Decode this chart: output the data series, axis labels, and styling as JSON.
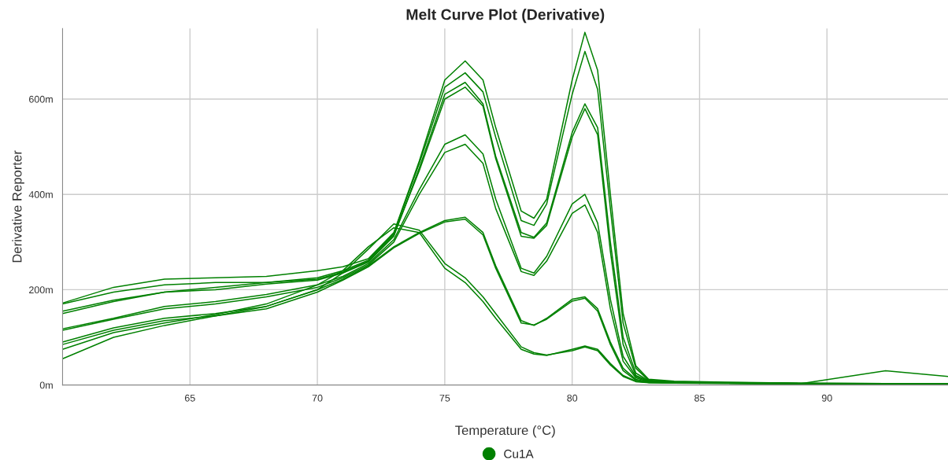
{
  "chart_data": {
    "type": "line",
    "title": "Melt Curve Plot (Derivative)",
    "xlabel": "Temperature (°C)",
    "ylabel": "Derivative Reporter",
    "x": [
      60,
      62,
      64,
      66,
      68,
      70,
      71,
      72,
      73,
      74,
      75,
      75.8,
      76.5,
      77,
      78,
      78.5,
      79,
      80,
      80.5,
      81,
      81.5,
      82,
      82.5,
      83,
      84,
      86,
      89,
      92.3,
      94.75
    ],
    "series": [
      {
        "name": "Cu1A",
        "color": "#008000",
        "values": [
          172,
          205,
          222,
          225,
          228,
          240,
          248,
          265,
          320,
          470,
          640,
          680,
          640,
          540,
          365,
          350,
          390,
          640,
          740,
          660,
          400,
          150,
          40,
          12,
          8,
          6,
          4,
          3,
          3
        ]
      },
      {
        "color": "#008000",
        "values": [
          170,
          195,
          210,
          215,
          215,
          225,
          240,
          262,
          318,
          465,
          625,
          655,
          615,
          520,
          345,
          335,
          380,
          610,
          700,
          620,
          370,
          130,
          35,
          10,
          7,
          5,
          4,
          3,
          3
        ]
      },
      {
        "color": "#008000",
        "values": [
          155,
          178,
          195,
          200,
          212,
          220,
          235,
          258,
          312,
          455,
          610,
          635,
          590,
          480,
          320,
          310,
          340,
          530,
          590,
          540,
          300,
          100,
          25,
          9,
          6,
          4,
          3,
          3,
          3
        ]
      },
      {
        "color": "#008000",
        "values": [
          150,
          175,
          195,
          205,
          215,
          222,
          237,
          260,
          315,
          450,
          600,
          625,
          585,
          475,
          312,
          308,
          335,
          520,
          580,
          525,
          280,
          85,
          20,
          8,
          6,
          4,
          3,
          3,
          3
        ]
      },
      {
        "color": "#008000",
        "values": [
          118,
          140,
          165,
          175,
          190,
          210,
          228,
          255,
          305,
          410,
          505,
          525,
          485,
          390,
          245,
          235,
          270,
          380,
          400,
          340,
          180,
          60,
          18,
          8,
          5,
          4,
          3,
          3,
          3
        ]
      },
      {
        "color": "#008000",
        "values": [
          115,
          138,
          160,
          170,
          185,
          205,
          225,
          252,
          300,
          400,
          488,
          505,
          465,
          370,
          238,
          230,
          260,
          360,
          378,
          320,
          160,
          50,
          15,
          7,
          5,
          4,
          3,
          3,
          3
        ]
      },
      {
        "color": "#008000",
        "values": [
          90,
          120,
          140,
          150,
          165,
          200,
          222,
          250,
          290,
          320,
          345,
          352,
          320,
          250,
          135,
          125,
          140,
          180,
          185,
          160,
          90,
          35,
          12,
          6,
          5,
          4,
          3,
          3,
          3
        ]
      },
      {
        "color": "#008000",
        "values": [
          85,
          115,
          135,
          145,
          160,
          195,
          220,
          248,
          288,
          318,
          342,
          348,
          315,
          245,
          130,
          126,
          138,
          176,
          182,
          155,
          85,
          30,
          10,
          6,
          5,
          4,
          3,
          3,
          3
        ]
      },
      {
        "color": "#008000",
        "values": [
          75,
          110,
          130,
          148,
          170,
          210,
          240,
          290,
          330,
          320,
          245,
          215,
          175,
          140,
          75,
          65,
          62,
          75,
          82,
          75,
          45,
          20,
          8,
          5,
          4,
          4,
          3,
          30,
          18
        ]
      },
      {
        "color": "#008000",
        "values": [
          55,
          100,
          125,
          145,
          165,
          200,
          235,
          285,
          338,
          325,
          255,
          225,
          185,
          150,
          80,
          68,
          63,
          72,
          80,
          72,
          42,
          18,
          7,
          5,
          4,
          3,
          3,
          3,
          3
        ]
      }
    ],
    "xlim": [
      60,
      94.75
    ],
    "xticks": [
      65,
      70,
      75,
      80,
      85,
      90
    ],
    "ylim": [
      0,
      748
    ],
    "yticks": [
      {
        "value": 0,
        "label": "0m"
      },
      {
        "value": 200,
        "label": "200m"
      },
      {
        "value": 400,
        "label": "400m"
      },
      {
        "value": 600,
        "label": "600m"
      }
    ],
    "grid": true,
    "legend": "bottom"
  }
}
